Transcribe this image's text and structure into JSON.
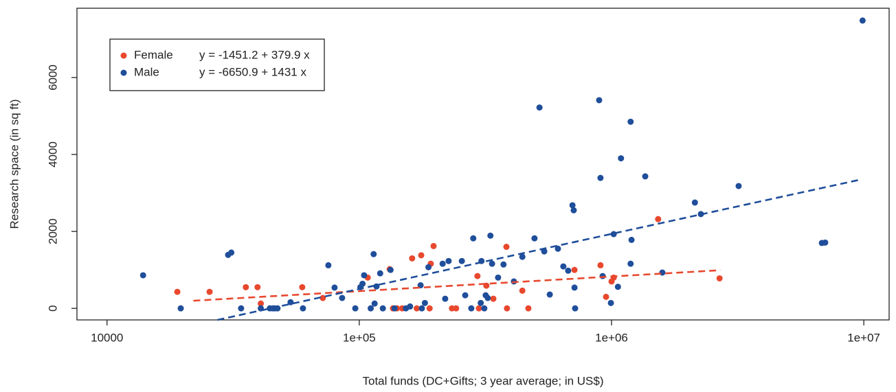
{
  "chart_data": {
    "type": "scatter",
    "xlabel": "Total funds (DC+Gifts; 3 year average; in US$)",
    "ylabel": "Research space (in sq ft)",
    "xscale": "log",
    "xlim": [
      7600,
      12600000
    ],
    "ylim": [
      -300,
      7800
    ],
    "xticks": [
      10000,
      {
        "value": 100000,
        "label": "1e+05"
      },
      {
        "value": 1000000,
        "label": "1e+06"
      },
      {
        "value": 10000000,
        "label": "1e+07"
      }
    ],
    "yticks": [
      0,
      2000,
      4000,
      6000
    ],
    "grid": false,
    "legend": "top-left",
    "series": [
      {
        "name": "Female",
        "color": "#e8482e",
        "equation": "y = -1451.2 + 379.9 x",
        "x": [
          19000,
          25500,
          35500,
          39500,
          40700,
          59400,
          71700,
          108000,
          132000,
          136000,
          141000,
          148000,
          162000,
          169000,
          176000,
          190000,
          192000,
          197000,
          233000,
          242000,
          294000,
          298000,
          319000,
          340000,
          383000,
          385000,
          443000,
          468000,
          713000,
          904000,
          951000,
          1000000,
          1020000,
          1530000,
          2680000
        ],
        "values": [
          430,
          430,
          550,
          550,
          125,
          550,
          270,
          800,
          1020,
          0,
          0,
          0,
          1300,
          0,
          1380,
          0,
          1160,
          1620,
          0,
          0,
          840,
          0,
          590,
          250,
          1600,
          0,
          460,
          0,
          1000,
          1120,
          300,
          700,
          800,
          2320,
          780
        ],
        "fit": {
          "x": [
            22000,
            2700000
          ],
          "y": [
            198,
            992
          ]
        }
      },
      {
        "name": "Male",
        "color": "#1f4e9a",
        "equation": "y = -6650.9 + 1431 x",
        "x": [
          13900,
          19600,
          30200,
          31100,
          34000,
          40700,
          44200,
          45400,
          46200,
          47400,
          53400,
          59800,
          75400,
          79800,
          85500,
          96400,
          101000,
          103000,
          104500,
          114000,
          111000,
          115000,
          117000,
          121000,
          124000,
          133000,
          138000,
          153000,
          159000,
          177000,
          182000,
          175000,
          188000,
          214000,
          219000,
          226000,
          255000,
          263000,
          278000,
          283000,
          303000,
          305000,
          313000,
          317000,
          323000,
          331000,
          336000,
          355000,
          373000,
          410000,
          443000,
          495000,
          541000,
          569000,
          613000,
          644000,
          673000,
          700000,
          708000,
          713000,
          717000,
          518000,
          893000,
          904000,
          922000,
          994000,
          1020000,
          1060000,
          1090000,
          1190000,
          1200000,
          1190000,
          1360000,
          1590000,
          2140000,
          2260000,
          3190000,
          6820000,
          7030000,
          9890000
        ],
        "values": [
          860,
          0,
          1390,
          1450,
          0,
          0,
          0,
          0,
          0,
          0,
          160,
          0,
          1120,
          540,
          270,
          0,
          550,
          640,
          860,
          1410,
          0,
          125,
          570,
          910,
          0,
          1000,
          0,
          0,
          50,
          0,
          140,
          600,
          1070,
          1160,
          250,
          1230,
          1230,
          340,
          0,
          1820,
          140,
          1230,
          0,
          340,
          270,
          1890,
          1160,
          800,
          1140,
          700,
          1340,
          1820,
          1480,
          360,
          1550,
          1090,
          980,
          2680,
          2550,
          540,
          0,
          5220,
          5410,
          3390,
          840,
          140,
          1930,
          560,
          3900,
          4850,
          1780,
          1160,
          3430,
          930,
          2750,
          2450,
          3180,
          1700,
          1710,
          7480
        ],
        "fit": {
          "x": [
            27400,
            9500000
          ],
          "y": [
            -300,
            3334
          ]
        }
      }
    ]
  }
}
